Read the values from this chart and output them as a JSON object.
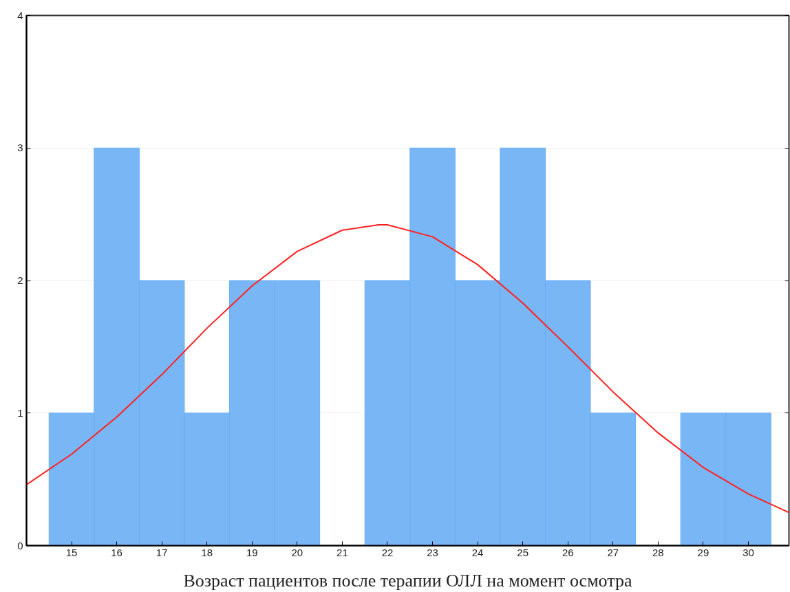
{
  "chart_data": {
    "type": "histogram",
    "xlabel": "Возраст пациентов после терапии ОЛЛ на момент осмотра",
    "bins": [
      14.5,
      15.5,
      16.5,
      17.5,
      18.5,
      19.5,
      20.5,
      21.5,
      22.5,
      23.5,
      24.5,
      25.5,
      26.5,
      27.5,
      28.5,
      29.5,
      30.5
    ],
    "values": [
      1,
      3,
      2,
      1,
      2,
      2,
      0,
      2,
      3,
      2,
      3,
      2,
      1,
      0,
      1,
      1
    ],
    "color": "#6aaef5",
    "series": [
      {
        "type": "line",
        "color": "#ff2020",
        "x": [
          14,
          15,
          16,
          17,
          18,
          19,
          20,
          21,
          21.8,
          22,
          23,
          24,
          25,
          26,
          27,
          28,
          29,
          30,
          30.9
        ],
        "values": [
          0.46,
          0.69,
          0.97,
          1.29,
          1.64,
          1.96,
          2.22,
          2.38,
          2.42,
          2.42,
          2.33,
          2.12,
          1.83,
          1.5,
          1.16,
          0.85,
          0.59,
          0.39,
          0.25
        ]
      }
    ],
    "xlim": [
      14,
      30.9
    ],
    "ylim": [
      0,
      4
    ],
    "xticks": [
      15,
      16,
      17,
      18,
      19,
      20,
      21,
      22,
      23,
      24,
      25,
      26,
      27,
      28,
      29,
      30
    ],
    "yticks": [
      0,
      1,
      2,
      3,
      4
    ],
    "grid": "y",
    "line_style": "solid",
    "marker": "none"
  }
}
